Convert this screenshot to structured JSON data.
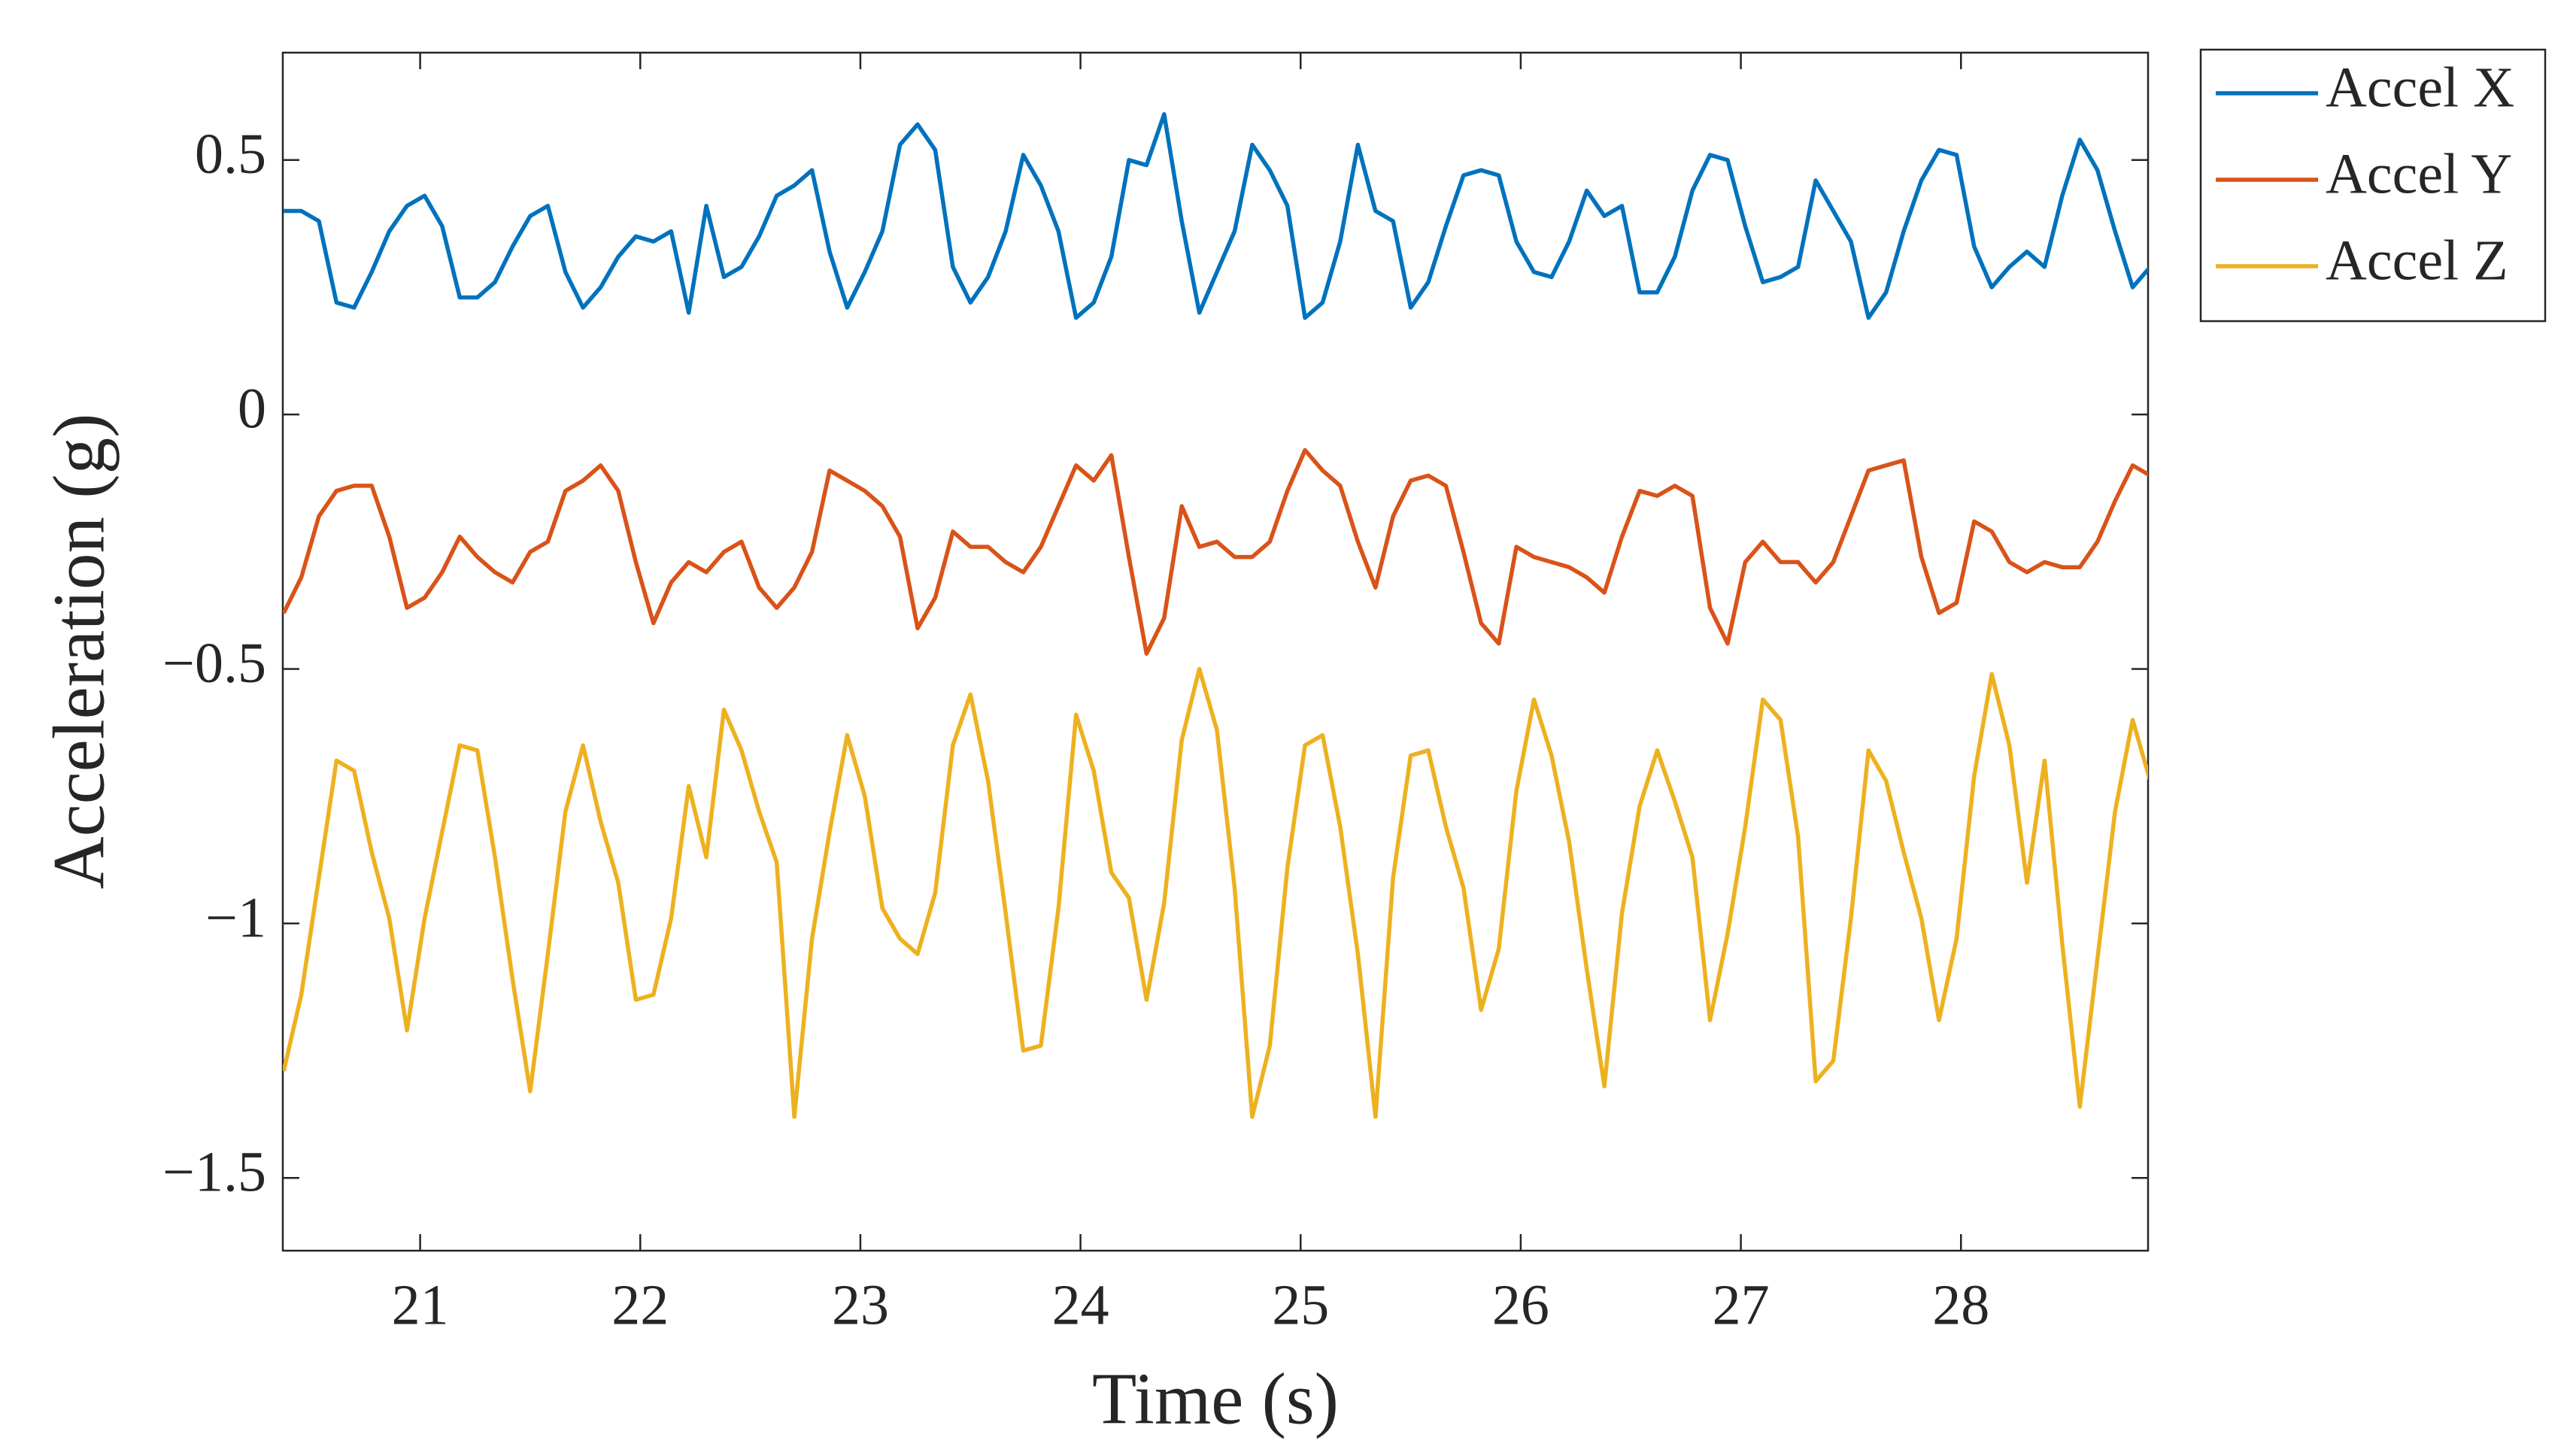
{
  "chart_data": {
    "type": "line",
    "xlabel": "Time (s)",
    "ylabel": "Acceleration (g)",
    "x": [
      20.38,
      20.46,
      20.54,
      20.62,
      20.7,
      20.78,
      20.86,
      20.94,
      21.02,
      21.1,
      21.18,
      21.26,
      21.34,
      21.42,
      21.5,
      21.58,
      21.66,
      21.74,
      21.82,
      21.9,
      21.98,
      22.06,
      22.14,
      22.22,
      22.3,
      22.38,
      22.46,
      22.54,
      22.62,
      22.7,
      22.78,
      22.86,
      22.94,
      23.02,
      23.1,
      23.18,
      23.26,
      23.34,
      23.42,
      23.5,
      23.58,
      23.66,
      23.74,
      23.82,
      23.9,
      23.98,
      24.06,
      24.14,
      24.22,
      24.3,
      24.38,
      24.46,
      24.54,
      24.62,
      24.7,
      24.78,
      24.86,
      24.94,
      25.02,
      25.1,
      25.18,
      25.26,
      25.34,
      25.42,
      25.5,
      25.58,
      25.66,
      25.74,
      25.82,
      25.9,
      25.98,
      26.06,
      26.14,
      26.22,
      26.3,
      26.38,
      26.46,
      26.54,
      26.62,
      26.7,
      26.78,
      26.86,
      26.94,
      27.02,
      27.1,
      27.18,
      27.26,
      27.34,
      27.42,
      27.5,
      27.58,
      27.66,
      27.74,
      27.82,
      27.9,
      27.98,
      28.06,
      28.14,
      28.22,
      28.3,
      28.38,
      28.46,
      28.54,
      28.62,
      28.7,
      28.78,
      28.86
    ],
    "series": [
      {
        "name": "Accel X",
        "color": "#0072BD",
        "values": [
          0.4,
          0.4,
          0.38,
          0.22,
          0.21,
          0.28,
          0.36,
          0.41,
          0.43,
          0.37,
          0.23,
          0.23,
          0.26,
          0.33,
          0.39,
          0.41,
          0.28,
          0.21,
          0.25,
          0.31,
          0.35,
          0.34,
          0.36,
          0.2,
          0.41,
          0.27,
          0.29,
          0.35,
          0.43,
          0.45,
          0.48,
          0.32,
          0.21,
          0.28,
          0.36,
          0.53,
          0.57,
          0.52,
          0.29,
          0.22,
          0.27,
          0.36,
          0.51,
          0.45,
          0.36,
          0.19,
          0.22,
          0.31,
          0.5,
          0.49,
          0.59,
          0.38,
          0.2,
          0.28,
          0.36,
          0.53,
          0.48,
          0.41,
          0.19,
          0.22,
          0.34,
          0.53,
          0.4,
          0.38,
          0.21,
          0.26,
          0.37,
          0.47,
          0.48,
          0.47,
          0.34,
          0.28,
          0.27,
          0.34,
          0.44,
          0.39,
          0.41,
          0.24,
          0.24,
          0.31,
          0.44,
          0.51,
          0.5,
          0.37,
          0.26,
          0.27,
          0.29,
          0.46,
          0.4,
          0.34,
          0.19,
          0.24,
          0.36,
          0.46,
          0.52,
          0.51,
          0.33,
          0.25,
          0.29,
          0.32,
          0.29,
          0.43,
          0.54,
          0.48,
          0.36,
          0.25,
          0.29
        ]
      },
      {
        "name": "Accel Y",
        "color": "#D95319",
        "values": [
          -0.39,
          -0.32,
          -0.2,
          -0.15,
          -0.14,
          -0.14,
          -0.24,
          -0.38,
          -0.36,
          -0.31,
          -0.24,
          -0.28,
          -0.31,
          -0.33,
          -0.27,
          -0.25,
          -0.15,
          -0.13,
          -0.1,
          -0.15,
          -0.29,
          -0.41,
          -0.33,
          -0.29,
          -0.31,
          -0.27,
          -0.25,
          -0.34,
          -0.38,
          -0.34,
          -0.27,
          -0.11,
          -0.13,
          -0.15,
          -0.18,
          -0.24,
          -0.42,
          -0.36,
          -0.23,
          -0.26,
          -0.26,
          -0.29,
          -0.31,
          -0.26,
          -0.18,
          -0.1,
          -0.13,
          -0.08,
          -0.28,
          -0.47,
          -0.4,
          -0.18,
          -0.26,
          -0.25,
          -0.28,
          -0.28,
          -0.25,
          -0.15,
          -0.07,
          -0.11,
          -0.14,
          -0.25,
          -0.34,
          -0.2,
          -0.13,
          -0.12,
          -0.14,
          -0.27,
          -0.41,
          -0.45,
          -0.26,
          -0.28,
          -0.29,
          -0.3,
          -0.32,
          -0.35,
          -0.24,
          -0.15,
          -0.16,
          -0.14,
          -0.16,
          -0.38,
          -0.45,
          -0.29,
          -0.25,
          -0.29,
          -0.29,
          -0.33,
          -0.29,
          -0.2,
          -0.11,
          -0.1,
          -0.09,
          -0.28,
          -0.39,
          -0.37,
          -0.21,
          -0.23,
          -0.29,
          -0.31,
          -0.29,
          -0.3,
          -0.3,
          -0.25,
          -0.17,
          -0.1,
          -0.12
        ]
      },
      {
        "name": "Accel Z",
        "color": "#EDB120",
        "values": [
          -1.29,
          -1.14,
          -0.91,
          -0.68,
          -0.7,
          -0.86,
          -0.99,
          -1.21,
          -0.99,
          -0.82,
          -0.65,
          -0.66,
          -0.87,
          -1.11,
          -1.33,
          -1.06,
          -0.78,
          -0.65,
          -0.8,
          -0.92,
          -1.15,
          -1.14,
          -0.99,
          -0.73,
          -0.87,
          -0.58,
          -0.66,
          -0.78,
          -0.88,
          -1.38,
          -1.03,
          -0.82,
          -0.63,
          -0.75,
          -0.97,
          -1.03,
          -1.06,
          -0.94,
          -0.65,
          -0.55,
          -0.72,
          -0.98,
          -1.25,
          -1.24,
          -0.97,
          -0.59,
          -0.7,
          -0.9,
          -0.95,
          -1.15,
          -0.96,
          -0.64,
          -0.5,
          -0.62,
          -0.93,
          -1.38,
          -1.24,
          -0.89,
          -0.65,
          -0.63,
          -0.81,
          -1.06,
          -1.38,
          -0.91,
          -0.67,
          -0.66,
          -0.81,
          -0.93,
          -1.17,
          -1.05,
          -0.74,
          -0.56,
          -0.67,
          -0.84,
          -1.09,
          -1.32,
          -0.98,
          -0.77,
          -0.66,
          -0.76,
          -0.87,
          -1.19,
          -1.02,
          -0.81,
          -0.56,
          -0.6,
          -0.83,
          -1.31,
          -1.27,
          -0.99,
          -0.66,
          -0.72,
          -0.86,
          -0.99,
          -1.19,
          -1.03,
          -0.71,
          -0.51,
          -0.65,
          -0.92,
          -0.68,
          -1.04,
          -1.36,
          -1.07,
          -0.78,
          -0.6,
          -0.72
        ]
      }
    ],
    "xlim": [
      20.376,
      28.85
    ],
    "xticks": [
      21,
      22,
      23,
      24,
      25,
      26,
      27,
      28
    ],
    "ylim": [
      -1.643,
      0.711
    ],
    "yticks": [
      {
        "value": -1.5,
        "label": "−1.5"
      },
      {
        "value": -1,
        "label": "−1"
      },
      {
        "value": -0.5,
        "label": "−0.5"
      },
      0,
      0.5
    ],
    "grid": false,
    "legend": "outside-top-right"
  }
}
